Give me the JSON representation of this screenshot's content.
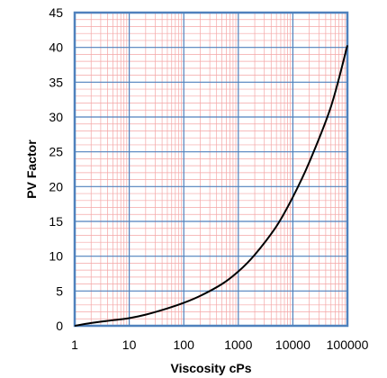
{
  "chart_data": {
    "type": "line",
    "title": "",
    "xlabel": "Viscosity cPs",
    "ylabel": "PV Factor",
    "x_scale": "log",
    "xlim": [
      1,
      100000
    ],
    "ylim": [
      0,
      45
    ],
    "x_ticks": [
      1,
      10,
      100,
      1000,
      10000,
      100000
    ],
    "x_tick_labels": [
      "1",
      "10",
      "100",
      "1000",
      "10000",
      "100000"
    ],
    "y_ticks": [
      0,
      5,
      10,
      15,
      20,
      25,
      30,
      35,
      40,
      45
    ],
    "y_tick_labels": [
      "0",
      "5",
      "10",
      "15",
      "20",
      "25",
      "30",
      "35",
      "40",
      "45"
    ],
    "grid": true,
    "legend": "none",
    "colors": {
      "series": "#000000",
      "major_grid": "#4f81bd",
      "minor_grid": "#f4a6a6",
      "frame": "#4f81bd"
    },
    "series": [
      {
        "x": [
          1,
          2,
          5,
          10,
          20,
          50,
          100,
          200,
          500,
          1000,
          2000,
          5000,
          10000,
          20000,
          50000,
          100000
        ],
        "y": [
          0,
          0.4,
          0.8,
          1.1,
          1.6,
          2.5,
          3.3,
          4.3,
          6.0,
          7.8,
          10.2,
          14.3,
          18.5,
          23.5,
          31.5,
          40.3
        ]
      }
    ]
  }
}
